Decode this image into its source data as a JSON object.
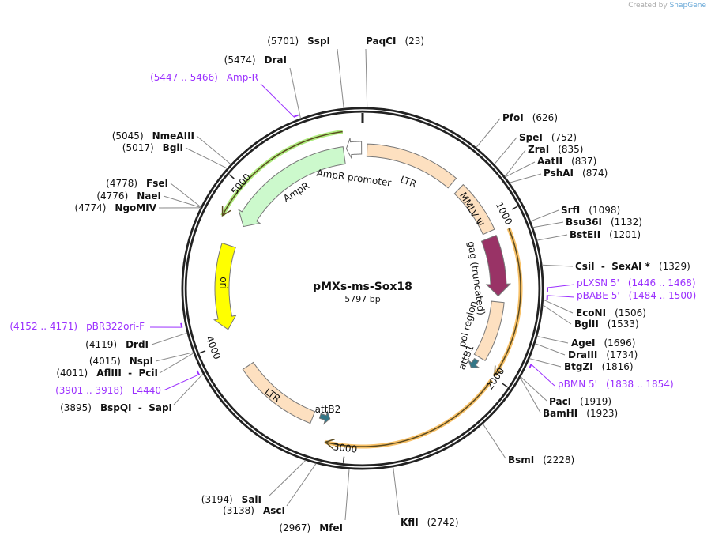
{
  "credit": {
    "prefix": "Created by",
    "brand": "SnapGene"
  },
  "plasmid": {
    "name": "pMXs-ms-Sox18",
    "length_label": "5797 bp",
    "length": 5797
  },
  "ticks": [
    "1000",
    "2000",
    "3000",
    "4000",
    "5000"
  ],
  "colors": {
    "ring": "#222222",
    "primer": "#9b30ff",
    "ltr": "#fde0c0",
    "gag": "#993366",
    "ampr": "#ccf9cc",
    "ori": "#ffff00",
    "att": "#337788",
    "orange": "#f5b041",
    "green_outer": "#99e65c"
  },
  "sites": [
    {
      "kind": "enzyme",
      "name": "PaqCI",
      "pos": "(23)",
      "at": 23
    },
    {
      "kind": "enzyme",
      "name": "PfoI",
      "pos": "(626)",
      "at": 626
    },
    {
      "kind": "enzyme",
      "name": "SpeI",
      "pos": "(752)",
      "at": 752
    },
    {
      "kind": "enzyme",
      "name": "ZraI",
      "pos": "(835)",
      "at": 835
    },
    {
      "kind": "enzyme",
      "name": "AatII",
      "pos": "(837)",
      "at": 837
    },
    {
      "kind": "enzyme",
      "name": "PshAI",
      "pos": "(874)",
      "at": 874
    },
    {
      "kind": "enzyme",
      "name": "SrfI",
      "pos": "(1098)",
      "at": 1098
    },
    {
      "kind": "enzyme",
      "name": "Bsu36I",
      "pos": "(1132)",
      "at": 1132
    },
    {
      "kind": "enzyme",
      "name": "BstEII",
      "pos": "(1201)",
      "at": 1201
    },
    {
      "kind": "enzyme",
      "name": "CsiI  -  SexAI *",
      "pos": "(1329)",
      "at": 1329
    },
    {
      "kind": "primer",
      "name": "pLXSN 5'",
      "pos": "(1446 .. 1468)",
      "at": 1446
    },
    {
      "kind": "primer",
      "name": "pBABE 5'",
      "pos": "(1484 .. 1500)",
      "at": 1484
    },
    {
      "kind": "enzyme",
      "name": "EcoNI",
      "pos": "(1506)",
      "at": 1506
    },
    {
      "kind": "enzyme",
      "name": "BglII",
      "pos": "(1533)",
      "at": 1533
    },
    {
      "kind": "enzyme",
      "name": "AgeI",
      "pos": "(1696)",
      "at": 1696
    },
    {
      "kind": "enzyme",
      "name": "DraIII",
      "pos": "(1734)",
      "at": 1734
    },
    {
      "kind": "enzyme",
      "name": "BtgZI",
      "pos": "(1816)",
      "at": 1816
    },
    {
      "kind": "primer",
      "name": "pBMN 5'",
      "pos": "(1838 .. 1854)",
      "at": 1838
    },
    {
      "kind": "enzyme",
      "name": "PacI",
      "pos": "(1919)",
      "at": 1919
    },
    {
      "kind": "enzyme",
      "name": "BamHI",
      "pos": "(1923)",
      "at": 1923
    },
    {
      "kind": "enzyme",
      "name": "BsmI",
      "pos": "(2228)",
      "at": 2228
    },
    {
      "kind": "enzyme",
      "name": "KflI",
      "pos": "(2742)",
      "at": 2742
    },
    {
      "kind": "enzyme",
      "name": "MfeI",
      "pos": "(2967)",
      "at": 2967
    },
    {
      "kind": "enzyme",
      "name": "AscI",
      "pos": "(3138)",
      "at": 3138
    },
    {
      "kind": "enzyme",
      "name": "SalI",
      "pos": "(3194)",
      "at": 3194
    },
    {
      "kind": "enzyme",
      "name": "BspQI  -  SapI",
      "pos": "(3895)",
      "at": 3895
    },
    {
      "kind": "primer",
      "name": "L4440",
      "pos": "(3901 .. 3918)",
      "at": 3901
    },
    {
      "kind": "enzyme",
      "name": "AflIII  -  PciI",
      "pos": "(4011)",
      "at": 4011
    },
    {
      "kind": "enzyme",
      "name": "NspI",
      "pos": "(4015)",
      "at": 4015
    },
    {
      "kind": "enzyme",
      "name": "DrdI",
      "pos": "(4119)",
      "at": 4119
    },
    {
      "kind": "primer",
      "name": "pBR322ori-F",
      "pos": "(4152 .. 4171)",
      "at": 4152
    },
    {
      "kind": "enzyme",
      "name": "NgoMIV",
      "pos": "(4774)",
      "at": 4774
    },
    {
      "kind": "enzyme",
      "name": "NaeI",
      "pos": "(4776)",
      "at": 4776
    },
    {
      "kind": "enzyme",
      "name": "FseI",
      "pos": "(4778)",
      "at": 4778
    },
    {
      "kind": "enzyme",
      "name": "BglI",
      "pos": "(5017)",
      "at": 5017
    },
    {
      "kind": "enzyme",
      "name": "NmeAIII",
      "pos": "(5045)",
      "at": 5045
    },
    {
      "kind": "primer",
      "name": "Amp-R",
      "pos": "(5447 .. 5466)",
      "at": 5447
    },
    {
      "kind": "enzyme",
      "name": "DraI",
      "pos": "(5474)",
      "at": 5474
    },
    {
      "kind": "enzyme",
      "name": "SspI",
      "pos": "(5701)",
      "at": 5701
    }
  ],
  "features": [
    {
      "label": "LTR",
      "start": 30,
      "end": 650,
      "dir": "none",
      "color": "#fde0c0"
    },
    {
      "label": "MMLV Ψ",
      "start": 710,
      "end": 1060,
      "dir": "none",
      "color": "#fde0c0"
    },
    {
      "label": "gag (truncated)",
      "start": 1100,
      "end": 1500,
      "dir": "cw",
      "color": "#993366"
    },
    {
      "label": "pol region",
      "start": 1540,
      "end": 1940,
      "dir": "none",
      "color": "#fde0c0"
    },
    {
      "label": "attB1",
      "start": 1965,
      "end": 2030,
      "dir": "cw",
      "color": "#337788"
    },
    {
      "label": "attB2",
      "start": 3125,
      "end": 3195,
      "dir": "ccw",
      "color": "#337788"
    },
    {
      "label": "LTR",
      "start": 3240,
      "end": 3800,
      "dir": "none",
      "color": "#fde0c0"
    },
    {
      "label": "ori",
      "start": 4075,
      "end": 4636,
      "dir": "ccw",
      "color": "#ffff00"
    },
    {
      "label": "AmpR",
      "start": 4790,
      "end": 5670,
      "dir": "ccw",
      "color": "#ccf9cc"
    },
    {
      "label": "AmpR promoter",
      "start": 5690,
      "end": 5790,
      "dir": "ccw",
      "color": "#ffffff"
    }
  ]
}
